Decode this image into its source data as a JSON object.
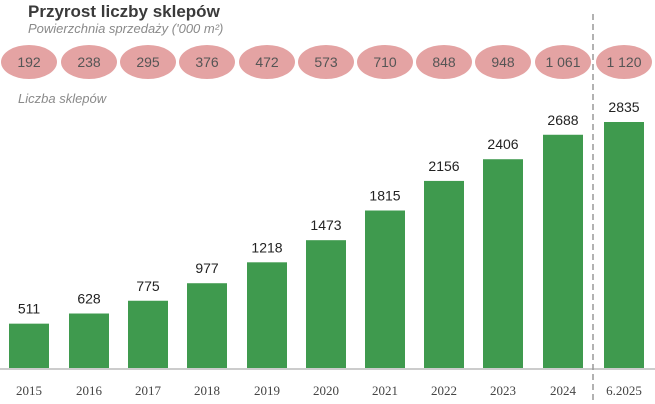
{
  "chart_data": {
    "type": "bar",
    "title": "Przyrost liczby sklepów",
    "subtitle": "Powierzchnia sprzedaży ('000 m²)",
    "series_label": "Liczba sklepów",
    "categories": [
      "2015",
      "2016",
      "2017",
      "2018",
      "2019",
      "2020",
      "2021",
      "2022",
      "2023",
      "2024",
      "6.2025"
    ],
    "values": [
      511,
      628,
      775,
      977,
      1218,
      1473,
      1815,
      2156,
      2406,
      2688,
      2835
    ],
    "value_labels": [
      "511",
      "628",
      "775",
      "977",
      "1218",
      "1473",
      "1815",
      "2156",
      "2406",
      "2688",
      "2835"
    ],
    "sales_area_labels": [
      "192",
      "238",
      "295",
      "376",
      "472",
      "573",
      "710",
      "848",
      "948",
      "1 061",
      "1 120"
    ],
    "ylim": [
      0,
      2835
    ],
    "grid": false,
    "colors": {
      "bar": "#3f9a4e",
      "ellipse": "#e4a3a3",
      "divider": "#888888"
    }
  }
}
